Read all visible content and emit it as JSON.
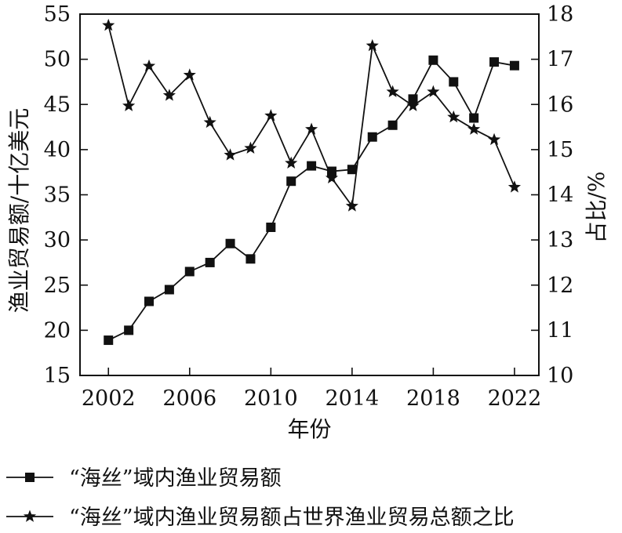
{
  "chart_data": {
    "type": "line",
    "x": [
      2002,
      2003,
      2004,
      2005,
      2006,
      2007,
      2008,
      2009,
      2010,
      2011,
      2012,
      2013,
      2014,
      2015,
      2016,
      2017,
      2018,
      2019,
      2020,
      2021,
      2022
    ],
    "x_ticks": [
      2002,
      2006,
      2010,
      2014,
      2018,
      2022
    ],
    "xlim": [
      2000.6,
      2023.2
    ],
    "xlabel": "年份",
    "ylabel": "渔业贸易额/十亿美元",
    "ylim": [
      15,
      55
    ],
    "y_ticks": [
      15,
      20,
      25,
      30,
      35,
      40,
      45,
      50,
      55
    ],
    "y2label": "占比/%",
    "y2lim": [
      10,
      18
    ],
    "y2_ticks": [
      10,
      11,
      12,
      13,
      14,
      15,
      16,
      17,
      18
    ],
    "grid": false,
    "legend_position": "bottom",
    "series": [
      {
        "name": "“海丝”域内渔业贸易额",
        "axis": "left",
        "marker": "square",
        "values": [
          18.9,
          20.0,
          23.2,
          24.5,
          26.5,
          27.5,
          29.6,
          27.9,
          31.4,
          36.5,
          38.2,
          37.6,
          37.8,
          41.4,
          42.7,
          45.6,
          49.9,
          47.5,
          43.5,
          49.7,
          49.3
        ]
      },
      {
        "name": "“海丝”域内渔业贸易额占世界渔业贸易总额之比",
        "axis": "right",
        "marker": "star",
        "values": [
          17.75,
          15.97,
          16.85,
          16.2,
          16.65,
          15.6,
          14.88,
          15.03,
          15.75,
          14.7,
          15.45,
          14.37,
          13.75,
          17.3,
          16.28,
          15.97,
          16.28,
          15.72,
          15.45,
          15.22,
          14.17
        ]
      }
    ]
  }
}
